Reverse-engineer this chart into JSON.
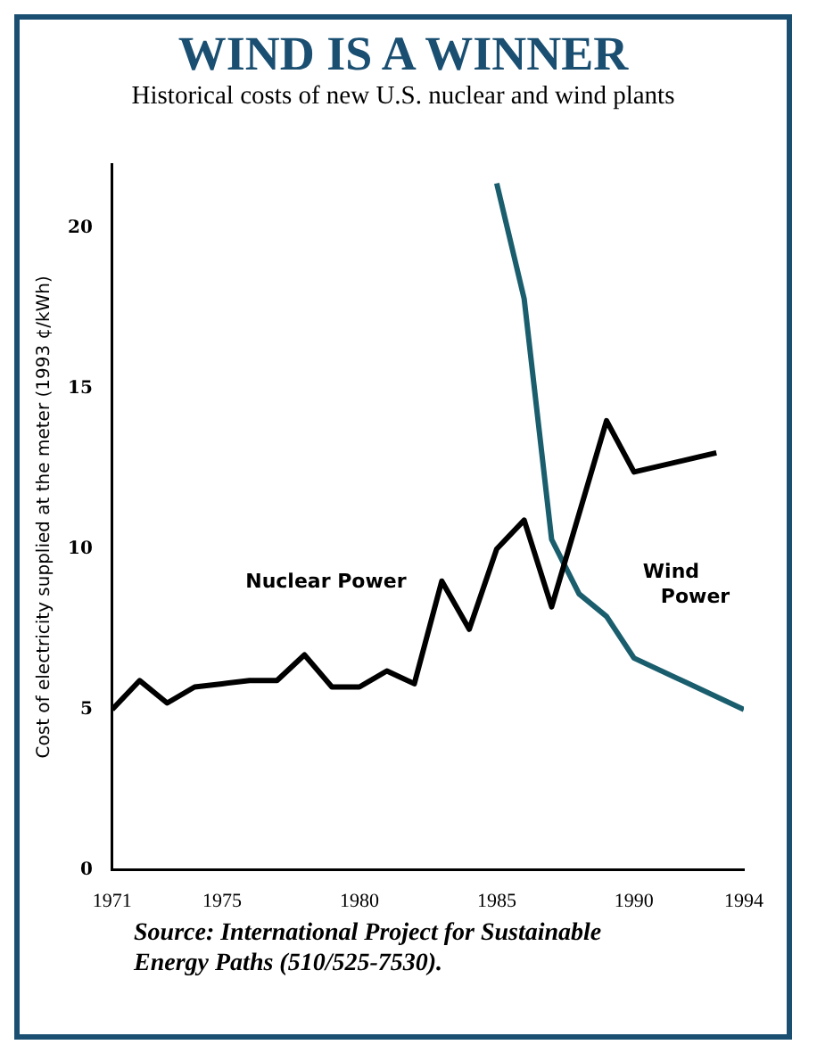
{
  "chart_data": {
    "type": "line",
    "title": "WIND IS A WINNER",
    "subtitle": "Historical costs of new U.S. nuclear and wind plants",
    "ylabel": "Cost of electricity supplied at the meter (1993 ¢/kWh)",
    "xlim": [
      1971,
      1994
    ],
    "xticks": [
      1971,
      1975,
      1980,
      1985,
      1990,
      1994
    ],
    "ylim": [
      0,
      22
    ],
    "yticks": [
      0,
      5,
      10,
      15,
      20
    ],
    "grid": false,
    "legend": false,
    "marker": "none",
    "line_style": "solid",
    "series": [
      {
        "name": "Nuclear Power",
        "color": "#000000",
        "x": [
          1971,
          1972,
          1973,
          1974,
          1975,
          1976,
          1977,
          1978,
          1979,
          1980,
          1981,
          1982,
          1983,
          1984,
          1985,
          1986,
          1987,
          1989,
          1990,
          1993
        ],
        "values": [
          5.0,
          5.9,
          5.2,
          5.7,
          5.8,
          5.9,
          5.9,
          6.7,
          5.7,
          5.7,
          6.2,
          5.8,
          9.0,
          7.5,
          10.0,
          10.9,
          8.2,
          14.0,
          12.4,
          13.0
        ]
      },
      {
        "name": "Wind Power",
        "color": "#1a5e6e",
        "x": [
          1985,
          1986,
          1987,
          1988,
          1989,
          1990,
          1994
        ],
        "values": [
          21.4,
          17.8,
          10.3,
          8.6,
          7.9,
          6.6,
          5.0
        ]
      }
    ],
    "annotations": [
      "Source: International Project for Sustainable Energy Paths (510/525-7530)."
    ]
  }
}
